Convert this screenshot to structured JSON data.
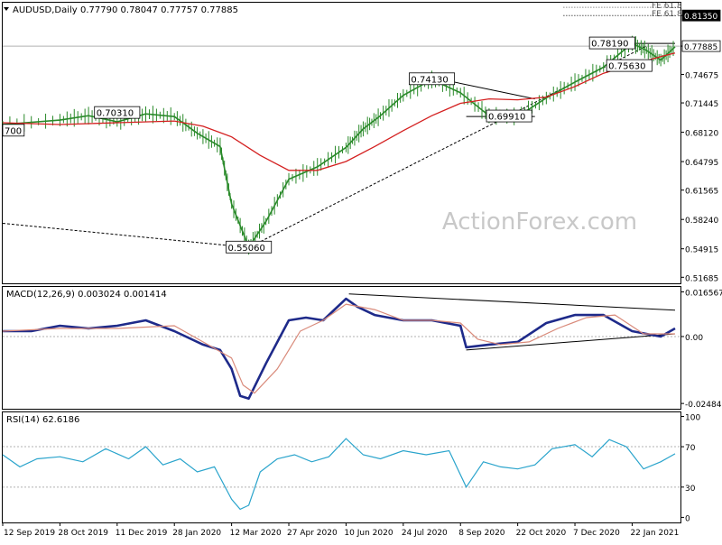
{
  "chart_data": [
    {
      "type": "line",
      "panel": "price",
      "header": {
        "symbol": "AUDUSD,Daily",
        "ohlc": "0.77790 0.78047 0.77757 0.77885"
      },
      "y_ticks": [
        "0.81350",
        "0.77885",
        "0.74675",
        "0.71445",
        "0.68120",
        "0.64795",
        "0.61565",
        "0.58240",
        "0.54915",
        "0.51685"
      ],
      "y_tick_values": [
        0.8135,
        0.77885,
        0.74675,
        0.71445,
        0.6812,
        0.64795,
        0.61565,
        0.5824,
        0.54915,
        0.51685
      ],
      "ylim": [
        0.51,
        0.828
      ],
      "top_labels": [
        "FE 61.8",
        "FE 61.8"
      ],
      "current_price": 0.77885,
      "x_ticks": [
        "12 Sep 2019",
        "28 Oct 2019",
        "11 Dec 2019",
        "28 Jan 2020",
        "12 Mar 2020",
        "27 Apr 2020",
        "10 Jun 2020",
        "24 Jul 2020",
        "8 Sep 2020",
        "22 Oct 2020",
        "7 Dec 2020",
        "22 Jan 2021"
      ],
      "watermark": "ActionForex.com",
      "series": [
        {
          "kind": "price",
          "color": "#2a8a2a",
          "x": [
            0,
            1,
            1.5,
            2,
            2.5,
            3,
            3.4,
            3.8,
            4,
            4.3,
            4.6,
            5,
            5.5,
            6,
            6.3,
            6.6,
            7,
            7.5,
            8,
            8.5,
            9,
            9.5,
            10,
            10.5,
            11,
            11.25,
            11.5,
            11.75
          ],
          "y": [
            0.69,
            0.695,
            0.7,
            0.693,
            0.702,
            0.699,
            0.68,
            0.665,
            0.6,
            0.551,
            0.58,
            0.628,
            0.642,
            0.664,
            0.685,
            0.7,
            0.723,
            0.741,
            0.726,
            0.7,
            0.699,
            0.72,
            0.738,
            0.755,
            0.782,
            0.774,
            0.763,
            0.778
          ]
        },
        {
          "kind": "moving-average",
          "color": "#d42020",
          "x": [
            0,
            1,
            2,
            3,
            3.5,
            4,
            4.5,
            5,
            5.5,
            6,
            6.5,
            7,
            7.5,
            8,
            8.5,
            9,
            9.5,
            10,
            10.5,
            11,
            11.5,
            11.75
          ],
          "y": [
            0.692,
            0.69,
            0.692,
            0.694,
            0.688,
            0.676,
            0.655,
            0.638,
            0.638,
            0.648,
            0.665,
            0.683,
            0.7,
            0.714,
            0.719,
            0.718,
            0.721,
            0.733,
            0.748,
            0.758,
            0.767,
            0.771
          ]
        }
      ],
      "annotations": [
        {
          "text": "0.70310",
          "x": 2.0,
          "y": 0.7031
        },
        {
          "text": "0.55060",
          "x": 4.3,
          "y": 0.5506
        },
        {
          "text": "0.74130",
          "x": 7.5,
          "y": 0.7413
        },
        {
          "text": "0.69910",
          "x": 8.85,
          "y": 0.6991
        },
        {
          "text": "0.78190",
          "x": 10.65,
          "y": 0.7819
        },
        {
          "text": "0.75630",
          "x": 10.95,
          "y": 0.7563
        },
        {
          "text": "700",
          "x": 0,
          "y": 0.683
        }
      ],
      "lines": [
        {
          "style": "dashed",
          "x": [
            0,
            4.3
          ],
          "y": [
            0.578,
            0.5506
          ]
        },
        {
          "style": "dashed",
          "x": [
            4.3,
            11.25
          ],
          "y": [
            0.5506,
            0.779
          ]
        },
        {
          "style": "solid",
          "x": [
            7.65,
            9.3
          ],
          "y": [
            0.7413,
            0.719
          ]
        },
        {
          "style": "solid",
          "x": [
            8.1,
            9.3
          ],
          "y": [
            0.6991,
            0.6991
          ]
        },
        {
          "style": "solid",
          "x": [
            10.5,
            11.75
          ],
          "y": [
            0.7819,
            0.7819
          ]
        },
        {
          "style": "dotted",
          "x": [
            9.8,
            11.75
          ],
          "y": [
            0.8135,
            0.8135
          ]
        }
      ]
    },
    {
      "type": "line",
      "panel": "macd",
      "header": "MACD(12,26,9) 0.003024 0.001414",
      "y_ticks": [
        "0.016567",
        "0.00",
        "-0.02484"
      ],
      "y_tick_values": [
        0.016567,
        0.0,
        -0.02484
      ],
      "ylim": [
        -0.0268,
        0.0184
      ],
      "series": [
        {
          "kind": "macd",
          "color": "#1e2a8a",
          "x": [
            0,
            0.5,
            1,
            1.5,
            2,
            2.5,
            3,
            3.5,
            3.8,
            4,
            4.15,
            4.3,
            4.6,
            5,
            5.3,
            5.6,
            6,
            6.2,
            6.5,
            7,
            7.5,
            8,
            8.1,
            8.5,
            9,
            9.5,
            10,
            10.5,
            11,
            11.5,
            11.75
          ],
          "y": [
            0.002,
            0.002,
            0.004,
            0.003,
            0.004,
            0.006,
            0.002,
            -0.003,
            -0.005,
            -0.012,
            -0.022,
            -0.023,
            -0.01,
            0.006,
            0.007,
            0.006,
            0.014,
            0.011,
            0.008,
            0.006,
            0.006,
            0.004,
            -0.004,
            -0.003,
            -0.002,
            0.005,
            0.008,
            0.008,
            0.002,
            0.0,
            0.003
          ]
        },
        {
          "kind": "signal",
          "color": "#d98a7a",
          "x": [
            0,
            1,
            2,
            3,
            3.5,
            4,
            4.2,
            4.4,
            4.8,
            5.2,
            5.6,
            6,
            6.5,
            7,
            7.5,
            8,
            8.3,
            8.7,
            9.2,
            9.7,
            10.2,
            10.7,
            11.2,
            11.75
          ],
          "y": [
            0.002,
            0.003,
            0.003,
            0.004,
            -0.002,
            -0.008,
            -0.018,
            -0.021,
            -0.012,
            0.002,
            0.006,
            0.012,
            0.01,
            0.006,
            0.006,
            0.005,
            -0.001,
            -0.003,
            -0.002,
            0.003,
            0.007,
            0.008,
            0.001,
            0.001
          ]
        }
      ],
      "lines": [
        {
          "style": "solid",
          "x": [
            6.05,
            11.75
          ],
          "y": [
            0.0158,
            0.0098
          ]
        },
        {
          "style": "solid",
          "x": [
            8.1,
            11.75
          ],
          "y": [
            -0.005,
            0.001
          ]
        }
      ]
    },
    {
      "type": "line",
      "panel": "rsi",
      "header": "RSI(14) 62.6186",
      "y_ticks": [
        "100",
        "70",
        "30",
        "0"
      ],
      "y_tick_values": [
        100,
        70,
        30,
        0
      ],
      "ylim": [
        -5,
        104
      ],
      "reference_levels": [
        70,
        30
      ],
      "series": [
        {
          "kind": "rsi",
          "color": "#2aa4cc",
          "x": [
            0,
            0.3,
            0.6,
            1,
            1.4,
            1.8,
            2.2,
            2.5,
            2.8,
            3.1,
            3.4,
            3.7,
            4,
            4.15,
            4.3,
            4.5,
            4.8,
            5.1,
            5.4,
            5.7,
            6,
            6.3,
            6.6,
            7,
            7.4,
            7.8,
            8.1,
            8.4,
            8.7,
            9,
            9.3,
            9.6,
            10,
            10.3,
            10.6,
            10.9,
            11.2,
            11.5,
            11.75
          ],
          "y": [
            62,
            50,
            58,
            60,
            55,
            68,
            58,
            70,
            52,
            58,
            45,
            50,
            18,
            8,
            12,
            45,
            58,
            62,
            55,
            60,
            78,
            62,
            58,
            66,
            62,
            66,
            30,
            55,
            50,
            48,
            52,
            68,
            72,
            60,
            77,
            70,
            48,
            55,
            63
          ]
        }
      ]
    }
  ]
}
